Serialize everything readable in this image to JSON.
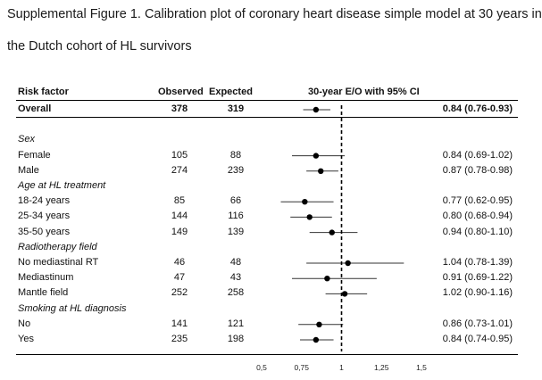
{
  "title_line1": "Supplemental Figure 1. Calibration plot of coronary heart disease simple model at 30 years in",
  "title_line2": "the Dutch cohort of HL survivors",
  "columns": {
    "risk_factor": "Risk factor",
    "observed": "Observed",
    "expected": "Expected",
    "ratio": "30-year E/O with 95% CI"
  },
  "chart_data": {
    "type": "forest",
    "title": "Supplemental Figure 1. Calibration plot of coronary heart disease simple model at 30 years in the Dutch cohort of HL survivors",
    "xlabel": "30-year E/O with 95% CI",
    "xlim": [
      0.5,
      1.5
    ],
    "xticks": [
      "0,5",
      "0,75",
      "1",
      "1,25",
      "1,5"
    ],
    "xtick_values": [
      0.5,
      0.75,
      1,
      1.25,
      1.5
    ],
    "reference_line": 1,
    "rows": [
      {
        "kind": "data",
        "label": "Overall",
        "bold": true,
        "observed": "378",
        "expected": "319",
        "est": 0.84,
        "lo": 0.76,
        "hi": 0.93,
        "ci_text": "0.84 (0.76-0.93)"
      },
      {
        "kind": "blank"
      },
      {
        "kind": "header",
        "label": "Sex"
      },
      {
        "kind": "data",
        "label": "Female",
        "observed": "105",
        "expected": "88",
        "est": 0.84,
        "lo": 0.69,
        "hi": 1.02,
        "ci_text": "0.84 (0.69-1.02)"
      },
      {
        "kind": "data",
        "label": "Male",
        "observed": "274",
        "expected": "239",
        "est": 0.87,
        "lo": 0.78,
        "hi": 0.98,
        "ci_text": "0.87 (0.78-0.98)"
      },
      {
        "kind": "header",
        "label": "Age at HL treatment"
      },
      {
        "kind": "data",
        "label": "18-24 years",
        "observed": "85",
        "expected": "66",
        "est": 0.77,
        "lo": 0.62,
        "hi": 0.95,
        "ci_text": "0.77 (0.62-0.95)"
      },
      {
        "kind": "data",
        "label": "25-34 years",
        "observed": "144",
        "expected": "116",
        "est": 0.8,
        "lo": 0.68,
        "hi": 0.94,
        "ci_text": "0.80 (0.68-0.94)"
      },
      {
        "kind": "data",
        "label": "35-50 years",
        "observed": "149",
        "expected": "139",
        "est": 0.94,
        "lo": 0.8,
        "hi": 1.1,
        "ci_text": "0.94 (0.80-1.10)"
      },
      {
        "kind": "header",
        "label": "Radiotherapy field"
      },
      {
        "kind": "data",
        "label": "No mediastinal RT",
        "observed": "46",
        "expected": "48",
        "est": 1.04,
        "lo": 0.78,
        "hi": 1.39,
        "ci_text": "1.04 (0.78-1.39)"
      },
      {
        "kind": "data",
        "label": "Mediastinum",
        "observed": "47",
        "expected": "43",
        "est": 0.91,
        "lo": 0.69,
        "hi": 1.22,
        "ci_text": "0.91 (0.69-1.22)"
      },
      {
        "kind": "data",
        "label": "Mantle field",
        "observed": "252",
        "expected": "258",
        "est": 1.02,
        "lo": 0.9,
        "hi": 1.16,
        "ci_text": "1.02 (0.90-1.16)"
      },
      {
        "kind": "header",
        "label": "Smoking at HL diagnosis"
      },
      {
        "kind": "data",
        "label": "No",
        "observed": "141",
        "expected": "121",
        "est": 0.86,
        "lo": 0.73,
        "hi": 1.01,
        "ci_text": "0.86 (0.73-1.01)"
      },
      {
        "kind": "data",
        "label": "Yes",
        "observed": "235",
        "expected": "198",
        "est": 0.84,
        "lo": 0.74,
        "hi": 0.95,
        "ci_text": "0.84 (0.74-0.95)"
      }
    ]
  }
}
